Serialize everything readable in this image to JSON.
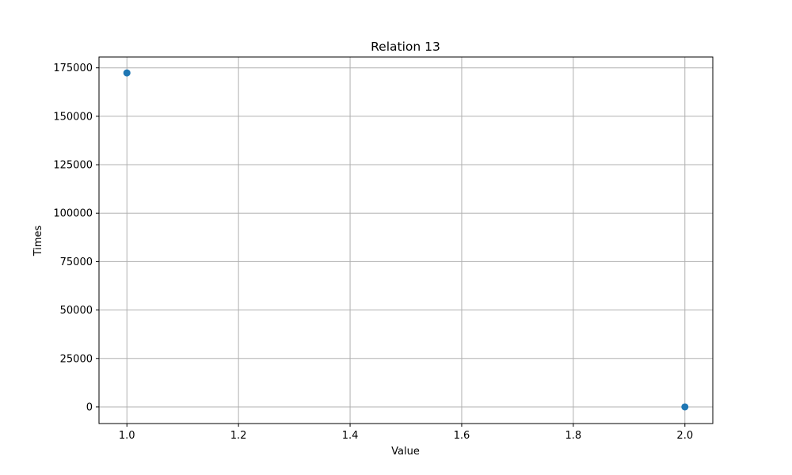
{
  "chart_data": {
    "type": "scatter",
    "title": "Relation 13",
    "xlabel": "Value",
    "ylabel": "Times",
    "grid": true,
    "xlim": [
      0.95,
      2.05
    ],
    "ylim": [
      -8600,
      180600
    ],
    "x_ticks": [
      1.0,
      1.2,
      1.4,
      1.6,
      1.8,
      2.0
    ],
    "x_tick_labels": [
      "1.0",
      "1.2",
      "1.4",
      "1.6",
      "1.8",
      "2.0"
    ],
    "y_ticks": [
      0,
      25000,
      50000,
      75000,
      100000,
      125000,
      150000,
      175000
    ],
    "y_tick_labels": [
      "0",
      "25000",
      "50000",
      "75000",
      "100000",
      "125000",
      "150000",
      "175000"
    ],
    "series": [
      {
        "color": "#1f77b4",
        "points": [
          {
            "x": 1.0,
            "y": 172400
          },
          {
            "x": 2.0,
            "y": 0
          }
        ]
      }
    ]
  }
}
